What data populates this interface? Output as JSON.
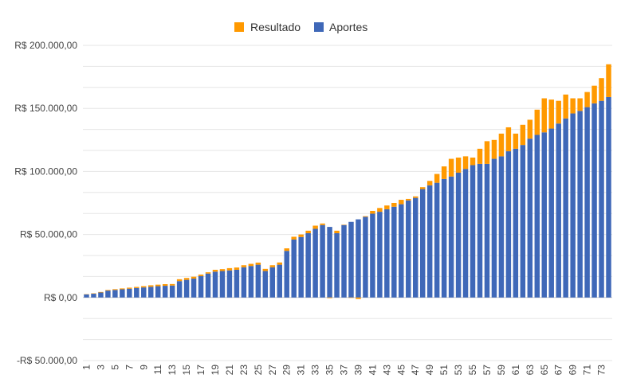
{
  "chart_data": {
    "type": "bar",
    "stacked": true,
    "legend_position": "top",
    "colors": {
      "Resultado": "#ff9900",
      "Aportes": "#3f68b8",
      "grid": "#e6e6e6",
      "zero_line": "#cccccc"
    },
    "ylim": [
      -50000,
      200000
    ],
    "y_ticks": [
      200000,
      150000,
      100000,
      50000,
      0,
      -50000
    ],
    "y_tick_labels": [
      "R$ 200.000,00",
      "R$ 150.000,00",
      "R$ 100.000,00",
      "R$ 50.000,00",
      "R$ 0,00",
      "-R$ 50.000,00"
    ],
    "grid_minor_step": 16666.67,
    "categories": [
      1,
      2,
      3,
      4,
      5,
      6,
      7,
      8,
      9,
      10,
      11,
      12,
      13,
      14,
      15,
      16,
      17,
      18,
      19,
      20,
      21,
      22,
      23,
      24,
      25,
      26,
      27,
      28,
      29,
      30,
      31,
      32,
      33,
      34,
      35,
      36,
      37,
      38,
      39,
      40,
      41,
      42,
      43,
      44,
      45,
      46,
      47,
      48,
      49,
      50,
      51,
      52,
      53,
      54,
      55,
      56,
      57,
      58,
      59,
      60,
      61,
      62,
      63,
      64,
      65,
      66,
      67,
      68,
      69,
      70,
      71,
      72,
      73,
      74
    ],
    "x_tick_labels": [
      "1",
      "3",
      "5",
      "7",
      "9",
      "11",
      "13",
      "15",
      "17",
      "19",
      "21",
      "23",
      "25",
      "27",
      "29",
      "31",
      "33",
      "35",
      "37",
      "39",
      "41",
      "43",
      "45",
      "47",
      "49",
      "51",
      "53",
      "55",
      "57",
      "59",
      "61",
      "63",
      "65",
      "67",
      "69",
      "71",
      "73"
    ],
    "series": [
      {
        "name": "Aportes",
        "values": [
          2500,
          3000,
          4000,
          5500,
          6000,
          6500,
          7000,
          7500,
          8000,
          8500,
          9000,
          9300,
          9500,
          13000,
          14000,
          15000,
          17000,
          19000,
          20500,
          21000,
          21500,
          22000,
          24000,
          25000,
          26000,
          21000,
          24000,
          26000,
          37000,
          46000,
          48000,
          51000,
          54500,
          57500,
          56000,
          51000,
          57500,
          60000,
          62000,
          64000,
          66500,
          68000,
          70000,
          72000,
          74000,
          77000,
          79000,
          86000,
          89000,
          91000,
          94000,
          96000,
          99000,
          102000,
          105000,
          106000,
          106000,
          110000,
          112000,
          116000,
          118000,
          121000,
          126000,
          129000,
          131000,
          134000,
          138000,
          142000,
          146000,
          148000,
          151000,
          154000,
          156000,
          159000
        ]
      },
      {
        "name": "Resultado",
        "values": [
          200,
          300,
          400,
          500,
          600,
          700,
          800,
          900,
          1000,
          1200,
          1200,
          1300,
          1200,
          1500,
          1500,
          1500,
          1200,
          1000,
          1500,
          1500,
          1800,
          1800,
          1600,
          1700,
          1700,
          1700,
          1600,
          1800,
          2000,
          2200,
          2000,
          2000,
          2500,
          1200,
          -500,
          2000,
          300,
          -300,
          -1200,
          500,
          2200,
          3000,
          3000,
          3000,
          3500,
          1200,
          1200,
          1500,
          3500,
          7000,
          10000,
          14000,
          12000,
          10000,
          6000,
          12000,
          18000,
          15000,
          18000,
          19000,
          12000,
          16000,
          15000,
          20000,
          27000,
          23000,
          18000,
          19000,
          12000,
          10000,
          12000,
          14000,
          18000,
          26000
        ]
      }
    ]
  }
}
